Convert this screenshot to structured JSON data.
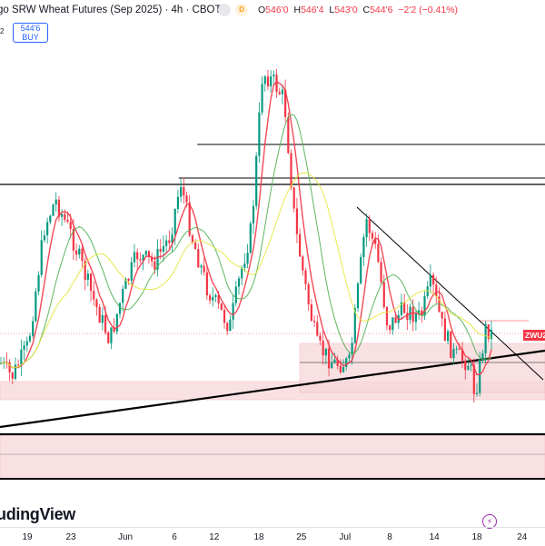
{
  "header": {
    "title": "go SRW Wheat Futures (Sep 2025) · 4h · CBOT",
    "ohlc": [
      {
        "k": "O",
        "v": "546'0"
      },
      {
        "k": "H",
        "v": "546'4"
      },
      {
        "k": "L",
        "v": "543'0"
      },
      {
        "k": "C",
        "v": "544'6"
      },
      {
        "k": "",
        "v": "−2'2 (−0.41%)"
      }
    ],
    "status_letter": "D"
  },
  "buy_button": {
    "price": "544'6",
    "label": "BUY"
  },
  "left_tag": "2",
  "ticker_tag": "ZWU2",
  "logo": "udingView",
  "x_axis": {
    "labels": [
      {
        "text": "19",
        "pos": 0.05
      },
      {
        "text": "23",
        "pos": 0.13
      },
      {
        "text": "Jun",
        "pos": 0.23
      },
      {
        "text": "6",
        "pos": 0.32
      },
      {
        "text": "12",
        "pos": 0.393
      },
      {
        "text": "18",
        "pos": 0.475
      },
      {
        "text": "25",
        "pos": 0.553
      },
      {
        "text": "Jul",
        "pos": 0.633
      },
      {
        "text": "8",
        "pos": 0.715
      },
      {
        "text": "14",
        "pos": 0.797
      },
      {
        "text": "18",
        "pos": 0.875
      },
      {
        "text": "24",
        "pos": 0.958
      }
    ]
  },
  "colors": {
    "up": "#089981",
    "down": "#f23645",
    "ma_fast": "#f23645",
    "ma_mid": "#4caf50",
    "ma_slow": "#e6e63c",
    "zone": "#f8d7da"
  },
  "chart_data": {
    "type": "candlestick",
    "symbol": "ZWU2",
    "interval": "4h",
    "exchange": "CBOT",
    "x": [
      "19",
      "23",
      "Jun",
      "6",
      "12",
      "18",
      "25",
      "Jul",
      "8",
      "14",
      "18",
      "24"
    ],
    "last_close": "544'6",
    "ohlc_last": {
      "open": "546'0",
      "high": "546'4",
      "low": "543'0",
      "close": "544'6",
      "change": "−2'2",
      "change_pct": "−0.41%"
    },
    "close_path": [
      {
        "t": 0,
        "v": 400
      },
      {
        "t": 0.02,
        "v": 415
      },
      {
        "t": 0.05,
        "v": 380
      },
      {
        "t": 0.08,
        "v": 250
      },
      {
        "t": 0.1,
        "v": 220
      },
      {
        "t": 0.13,
        "v": 260
      },
      {
        "t": 0.17,
        "v": 330
      },
      {
        "t": 0.2,
        "v": 375
      },
      {
        "t": 0.22,
        "v": 330
      },
      {
        "t": 0.25,
        "v": 280
      },
      {
        "t": 0.28,
        "v": 290
      },
      {
        "t": 0.31,
        "v": 260
      },
      {
        "t": 0.33,
        "v": 200
      },
      {
        "t": 0.35,
        "v": 260
      },
      {
        "t": 0.38,
        "v": 320
      },
      {
        "t": 0.4,
        "v": 340
      },
      {
        "t": 0.42,
        "v": 360
      },
      {
        "t": 0.44,
        "v": 300
      },
      {
        "t": 0.46,
        "v": 250
      },
      {
        "t": 0.48,
        "v": 80
      },
      {
        "t": 0.5,
        "v": 90
      },
      {
        "t": 0.52,
        "v": 110
      },
      {
        "t": 0.54,
        "v": 250
      },
      {
        "t": 0.56,
        "v": 320
      },
      {
        "t": 0.58,
        "v": 380
      },
      {
        "t": 0.61,
        "v": 400
      },
      {
        "t": 0.64,
        "v": 400
      },
      {
        "t": 0.67,
        "v": 240
      },
      {
        "t": 0.69,
        "v": 280
      },
      {
        "t": 0.71,
        "v": 360
      },
      {
        "t": 0.74,
        "v": 340
      },
      {
        "t": 0.77,
        "v": 350
      },
      {
        "t": 0.79,
        "v": 310
      },
      {
        "t": 0.81,
        "v": 360
      },
      {
        "t": 0.83,
        "v": 390
      },
      {
        "t": 0.86,
        "v": 400
      },
      {
        "t": 0.87,
        "v": 435
      },
      {
        "t": 0.89,
        "v": 360
      },
      {
        "t": 0.9,
        "v": 367
      }
    ],
    "bands": [
      {
        "name": "lower-zone",
        "y0": 478,
        "y1": 528
      },
      {
        "name": "mid-zone",
        "y0": 420,
        "y1": 440
      },
      {
        "name": "range-zone",
        "x0": 0.55,
        "x1": 1.0,
        "y0": 378,
        "y1": 432
      }
    ]
  }
}
